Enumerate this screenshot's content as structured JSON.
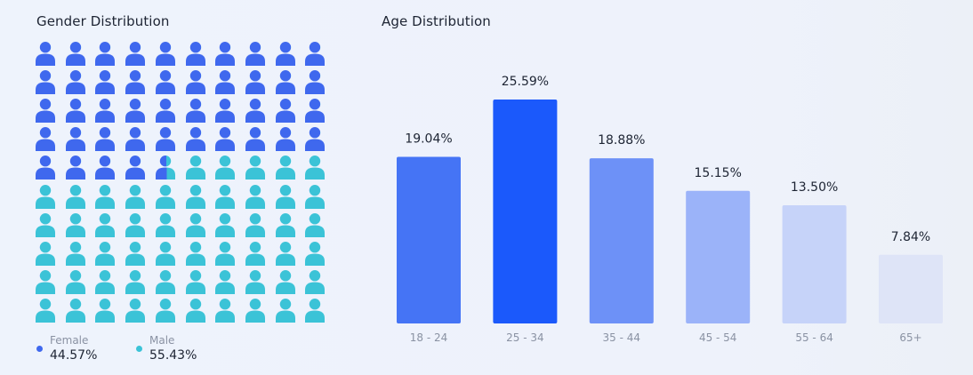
{
  "gender": {
    "title": "Gender Distribution",
    "female_color": "#3f68ee",
    "male_color": "#3bc3d7",
    "grid_columns": 10,
    "grid_rows": 10,
    "legend": [
      {
        "label": "Female",
        "value": "44.57%",
        "color": "#3f68ee"
      },
      {
        "label": "Male",
        "value": "55.43%",
        "color": "#3bc3d7"
      }
    ]
  },
  "chart_data": [
    {
      "type": "waffle",
      "title": "Gender Distribution",
      "categories": [
        "Female",
        "Male"
      ],
      "values": [
        44.57,
        55.43
      ],
      "unit": "%",
      "grid": [
        10,
        10
      ]
    },
    {
      "type": "bar",
      "title": "Age Distribution",
      "categories": [
        "18 - 24",
        "25 - 34",
        "35 - 44",
        "45 - 54",
        "55 - 64",
        "65+"
      ],
      "values": [
        19.04,
        25.59,
        18.88,
        15.15,
        13.5,
        7.84
      ],
      "labels": [
        "19.04%",
        "25.59%",
        "18.88%",
        "15.15%",
        "13.50%",
        "7.84%"
      ],
      "colors": [
        "#4574f5",
        "#1b59fb",
        "#6d91f7",
        "#9bb3f9",
        "#c6d3f9",
        "#dee4f7"
      ],
      "xlabel": "",
      "ylabel": "",
      "ylim": [
        0,
        25.59
      ],
      "grid": false
    }
  ]
}
